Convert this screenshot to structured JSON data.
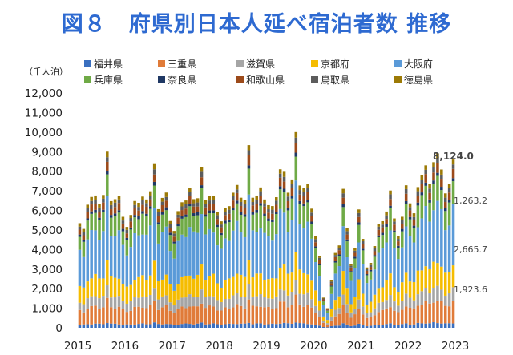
{
  "title": "図８　府県別日本人延べ宿泊者数 推移",
  "unit_label": "（千人泊）",
  "colors": {
    "title": "#2E6AD1",
    "福井県": "#3A6FBF",
    "三重県": "#E07B39",
    "滋賀県": "#A5A5A5",
    "京都府": "#F5BC00",
    "大阪府": "#5A9AD8",
    "兵庫県": "#6FAA46",
    "奈良県": "#1F3864",
    "和歌山県": "#9C4A1A",
    "鳥取県": "#5C5C5C",
    "徳島県": "#9C7A06"
  },
  "chart_data": {
    "type": "bar",
    "stacked": true,
    "title": "図８　府県別日本人延べ宿泊者数 推移",
    "ylabel": "（千人泊）",
    "xlabel": "",
    "ylim": [
      0,
      12000
    ],
    "yticks": [
      "0",
      "1,000",
      "2,000",
      "3,000",
      "4,000",
      "5,000",
      "6,000",
      "7,000",
      "8,000",
      "9,000",
      "10,000",
      "11,000",
      "12,000"
    ],
    "xtick_labels": [
      "2015",
      "2016",
      "2017",
      "2018",
      "2019",
      "2020",
      "2021",
      "2022",
      "2023"
    ],
    "x_start": "2015-01",
    "x_end": "2023-12",
    "grid": false,
    "legend_position": "top",
    "legend": [
      "福井県",
      "三重県",
      "滋賀県",
      "京都府",
      "大阪府",
      "兵庫県",
      "奈良県",
      "和歌山県",
      "鳥取県",
      "徳島県"
    ],
    "series_order": [
      "福井県",
      "三重県",
      "滋賀県",
      "京都府",
      "大阪府",
      "兵庫県",
      "奈良県",
      "和歌山県",
      "鳥取県",
      "徳島県"
    ],
    "totals": [
      5300,
      5200,
      6300,
      6500,
      6800,
      6500,
      6700,
      8800,
      6600,
      6700,
      6600,
      5600,
      5300,
      5800,
      6300,
      6400,
      6900,
      6500,
      6800,
      8500,
      6200,
      6500,
      6800,
      5600,
      5000,
      5800,
      6400,
      6700,
      7100,
      6400,
      6700,
      8400,
      6400,
      6600,
      6900,
      6000,
      5300,
      6100,
      6400,
      6900,
      7100,
      6700,
      6700,
      9200,
      6500,
      6900,
      7300,
      6400,
      6200,
      6400,
      6700,
      7900,
      8000,
      7100,
      7500,
      9800,
      7400,
      7300,
      7200,
      6000,
      4800,
      3700,
      1500,
      1000,
      2500,
      3800,
      4100,
      7200,
      5200,
      3200,
      4000,
      6200,
      4600,
      3000,
      3300,
      4300,
      5300,
      5300,
      6000,
      7200,
      5500,
      4600,
      5800,
      7400,
      6200,
      5800,
      7400,
      7800,
      8100,
      7400,
      8700,
      8800,
      7900,
      7000,
      7500,
      8400
    ],
    "fractions": {
      "福井県": 0.03,
      "三重県": 0.13,
      "滋賀県": 0.08,
      "京都府": 0.15,
      "大阪府": 0.34,
      "兵庫県": 0.14,
      "奈良県": 0.02,
      "和歌山県": 0.05,
      "鳥取県": 0.03,
      "徳島県": 0.03
    },
    "data_labels": [
      "8,124.0",
      "1,263.2",
      "2,665.7",
      "1,923.6"
    ]
  }
}
